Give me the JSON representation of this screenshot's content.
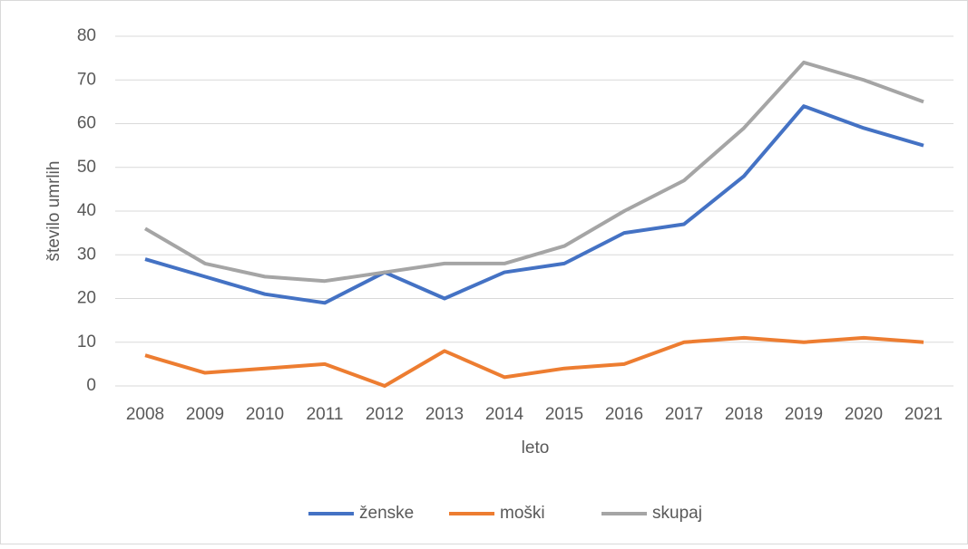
{
  "chart_data": {
    "type": "line",
    "categories": [
      "2008",
      "2009",
      "2010",
      "2011",
      "2012",
      "2013",
      "2014",
      "2015",
      "2016",
      "2017",
      "2018",
      "2019",
      "2020",
      "2021"
    ],
    "series": [
      {
        "name": "ženske",
        "color": "#4472c4",
        "values": [
          29,
          25,
          21,
          19,
          26,
          20,
          26,
          28,
          35,
          37,
          48,
          64,
          59,
          55
        ]
      },
      {
        "name": "moški",
        "color": "#ed7d31",
        "values": [
          7,
          3,
          4,
          5,
          0,
          8,
          2,
          4,
          5,
          10,
          11,
          10,
          11,
          10
        ]
      },
      {
        "name": "skupaj",
        "color": "#a5a5a5",
        "values": [
          36,
          28,
          25,
          24,
          26,
          28,
          28,
          32,
          40,
          47,
          59,
          74,
          70,
          65
        ]
      }
    ],
    "xlabel": "leto",
    "ylabel": "število umrlih",
    "ylim": [
      0,
      80
    ],
    "yticks": [
      0,
      10,
      20,
      30,
      40,
      50,
      60,
      70,
      80
    ],
    "grid": true,
    "legend": "bottom"
  }
}
